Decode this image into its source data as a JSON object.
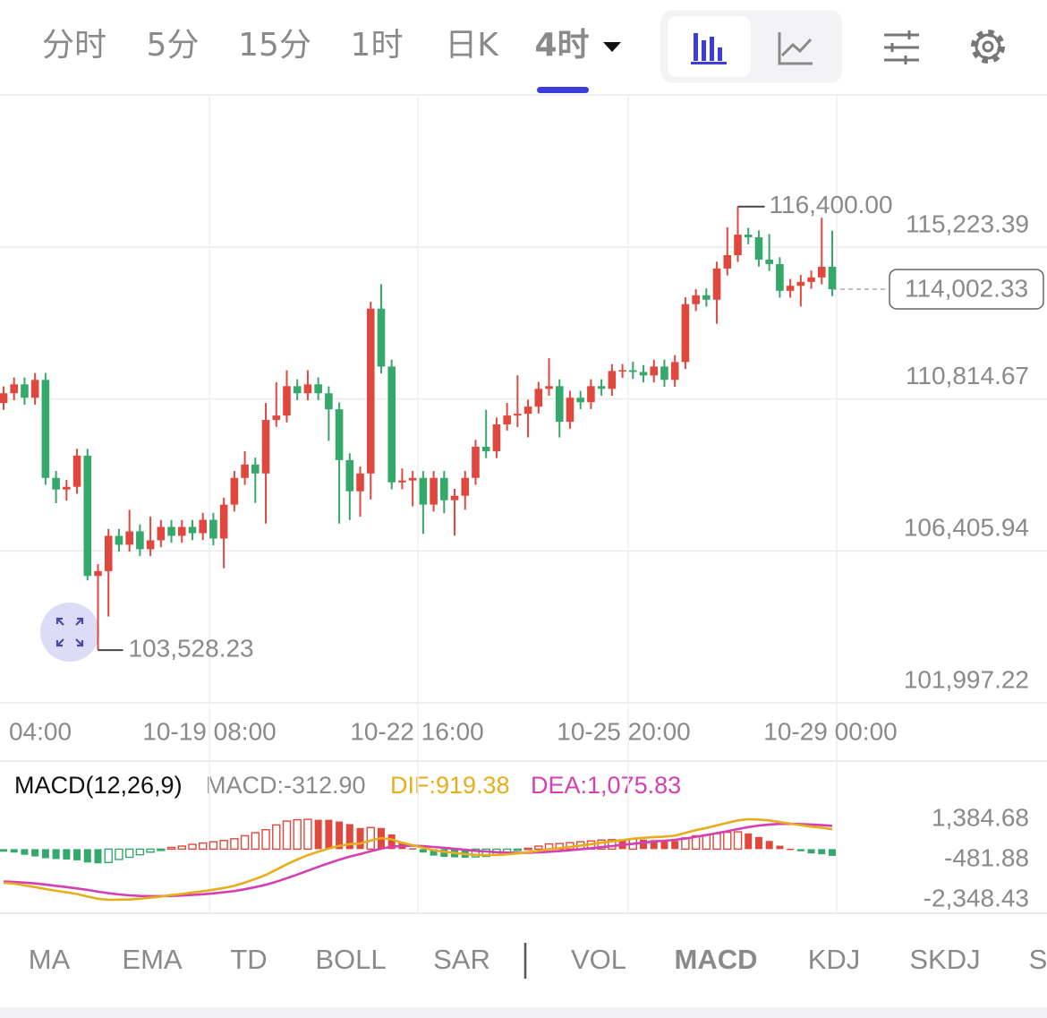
{
  "tabs": [
    "分时",
    "5分",
    "15分",
    "1时",
    "日K",
    "4时"
  ],
  "chart": {
    "type": "candlestick",
    "yticks": [
      {
        "value": 115223.39,
        "label": "115,223.39"
      },
      {
        "value": 110814.67,
        "label": "110,814.67"
      },
      {
        "value": 106405.94,
        "label": "106,405.94"
      },
      {
        "value": 101997.22,
        "label": "101,997.22"
      }
    ],
    "up_color": "#e0483e",
    "down_color": "#35a86b",
    "high_label": {
      "value": 116400,
      "label": "116,400.00"
    },
    "low_label": {
      "value": 103528.23,
      "label": "103,528.23"
    },
    "last_price": {
      "value": 114002.33,
      "label": "114,002.33"
    },
    "time_labels": [
      "04:00",
      "10-19 08:00",
      "10-22 16:00",
      "10-25 20:00",
      "10-29 00:00"
    ],
    "candles": [
      [
        110700,
        111180,
        110500,
        110982
      ],
      [
        110982,
        111440,
        110780,
        111240
      ],
      [
        111240,
        111440,
        110650,
        110852
      ],
      [
        110852,
        111570,
        110650,
        111370
      ],
      [
        111370,
        111570,
        108325,
        108525
      ],
      [
        108525,
        108725,
        107790,
        108189
      ],
      [
        108189,
        108466,
        107866,
        108266
      ],
      [
        108266,
        109371,
        108066,
        109171
      ],
      [
        109171,
        109371,
        105550,
        105680
      ],
      [
        105680,
        106020,
        103528.23,
        105820
      ],
      [
        105820,
        107044,
        104500,
        106844
      ],
      [
        106844,
        107044,
        106385,
        106585
      ],
      [
        106585,
        107600,
        106385,
        106974
      ],
      [
        106974,
        107174,
        106256,
        106456
      ],
      [
        106456,
        107400,
        106256,
        106715
      ],
      [
        106715,
        107303,
        106515,
        107103
      ],
      [
        107103,
        107303,
        106644,
        106844
      ],
      [
        106844,
        107303,
        106644,
        107103
      ],
      [
        107103,
        107303,
        106721,
        106921
      ],
      [
        106921,
        107509,
        106721,
        107309
      ],
      [
        107309,
        107509,
        106566,
        106766
      ],
      [
        106766,
        107950,
        105900,
        107750
      ],
      [
        107750,
        108725,
        107550,
        108525
      ],
      [
        108525,
        109300,
        108325,
        108913
      ],
      [
        108913,
        109113,
        107800,
        108654
      ],
      [
        108654,
        110700,
        107200,
        110206
      ],
      [
        110206,
        111300,
        110006,
        110335
      ],
      [
        110335,
        111650,
        110135,
        111188
      ],
      [
        111188,
        111388,
        110782,
        110982
      ],
      [
        110982,
        111650,
        110782,
        111240
      ],
      [
        111240,
        111440,
        110782,
        110982
      ],
      [
        110982,
        111182,
        109600,
        110516
      ],
      [
        110516,
        110716,
        107200,
        109042
      ],
      [
        109042,
        109242,
        107300,
        108137
      ],
      [
        108137,
        108854,
        107400,
        108654
      ],
      [
        108654,
        113638,
        107900,
        113438
      ],
      [
        113438,
        114150,
        111557,
        111757
      ],
      [
        111757,
        111957,
        108196,
        108396
      ],
      [
        108396,
        108800,
        108196,
        108450
      ],
      [
        108450,
        108725,
        107700,
        108525
      ],
      [
        108525,
        108725,
        106900,
        107750
      ],
      [
        107750,
        108725,
        107550,
        108525
      ],
      [
        108525,
        108725,
        107500,
        107878
      ],
      [
        107878,
        108208,
        106850,
        108008
      ],
      [
        108008,
        108725,
        107600,
        108525
      ],
      [
        108525,
        109630,
        108325,
        109430
      ],
      [
        109430,
        110500,
        109101,
        109301
      ],
      [
        109301,
        110277,
        109101,
        110077
      ],
      [
        110077,
        110700,
        109900,
        110335
      ],
      [
        110335,
        111500,
        110000,
        110387
      ],
      [
        110387,
        110794,
        109700,
        110594
      ],
      [
        110594,
        111311,
        110394,
        111111
      ],
      [
        111111,
        112000,
        110911,
        111188
      ],
      [
        111188,
        111388,
        109700,
        110154
      ],
      [
        110154,
        111052,
        109954,
        110852
      ],
      [
        110852,
        111052,
        110523,
        110723
      ],
      [
        110723,
        111388,
        110523,
        111188
      ],
      [
        111188,
        111388,
        110911,
        111111
      ],
      [
        111111,
        111828,
        110911,
        111628
      ],
      [
        111628,
        111828,
        111428,
        111650
      ],
      [
        111650,
        111900,
        111400,
        111600
      ],
      [
        111600,
        111800,
        111299,
        111499
      ],
      [
        111499,
        111957,
        111299,
        111757
      ],
      [
        111757,
        111957,
        111170,
        111370
      ],
      [
        111370,
        112087,
        111170,
        111887
      ],
      [
        111887,
        113768,
        111687,
        113568
      ],
      [
        113568,
        114000,
        113368,
        113826
      ],
      [
        113826,
        114026,
        113497,
        113697
      ],
      [
        113697,
        114802,
        113000,
        114602
      ],
      [
        114602,
        115800,
        114402,
        114990
      ],
      [
        114990,
        116400,
        114790,
        115585
      ],
      [
        115585,
        115785,
        115307,
        115507
      ],
      [
        115507,
        115707,
        114661,
        114861
      ],
      [
        114861,
        115600,
        114531,
        114731
      ],
      [
        114731,
        114931,
        113755,
        113955
      ],
      [
        113955,
        114300,
        113755,
        114100
      ],
      [
        114100,
        114414,
        113500,
        114214
      ],
      [
        114214,
        114543,
        114014,
        114343
      ],
      [
        114343,
        116076,
        114143,
        114654
      ],
      [
        114654,
        115700,
        113800,
        114002.33
      ]
    ]
  },
  "macd": {
    "title": "MACD(12,26,9)",
    "macd_label": "MACD:-312.90",
    "dif_label": "DIF:919.38",
    "dea_label": "DEA:1,075.83",
    "dif_color": "#e8ad1c",
    "dea_color": "#d63fb4",
    "yticks": [
      {
        "value": 1384.68,
        "label": "1,384.68"
      },
      {
        "value": -481.88,
        "label": "-481.88"
      },
      {
        "value": -2348.43,
        "label": "-2,348.43"
      }
    ],
    "histogram": [
      -120,
      -160,
      -260,
      -340,
      -420,
      -460,
      -480,
      -520,
      -620,
      -660,
      -620,
      -480,
      -380,
      -260,
      -140,
      -40,
      80,
      140,
      220,
      280,
      340,
      400,
      480,
      620,
      760,
      900,
      1120,
      1300,
      1360,
      1380,
      1360,
      1360,
      1280,
      1160,
      980,
      1000,
      980,
      680,
      300,
      40,
      -160,
      -300,
      -360,
      -380,
      -400,
      -360,
      -340,
      -260,
      -160,
      -60,
      40,
      140,
      240,
      260,
      300,
      340,
      380,
      420,
      440,
      440,
      460,
      440,
      420,
      380,
      380,
      520,
      620,
      660,
      720,
      780,
      800,
      729,
      560,
      380,
      160,
      20,
      -100,
      -200,
      -240,
      -312.9
    ],
    "dif": [
      -1560,
      -1600,
      -1680,
      -1760,
      -1850,
      -1930,
      -2000,
      -2080,
      -2200,
      -2300,
      -2348.43,
      -2340,
      -2330,
      -2300,
      -2250,
      -2200,
      -2130,
      -2080,
      -2010,
      -1950,
      -1880,
      -1800,
      -1700,
      -1550,
      -1380,
      -1200,
      -950,
      -700,
      -480,
      -280,
      -120,
      30,
      150,
      230,
      260,
      400,
      510,
      450,
      300,
      180,
      60,
      -50,
      -120,
      -180,
      -230,
      -260,
      -280,
      -270,
      -240,
      -200,
      -150,
      -80,
      0,
      40,
      100,
      160,
      230,
      300,
      360,
      420,
      480,
      520,
      560,
      580,
      620,
      750,
      880,
      980,
      1100,
      1220,
      1330,
      1384.68,
      1370,
      1330,
      1250,
      1180,
      1110,
      1040,
      990,
      919.38
    ],
    "dea": [
      -1500,
      -1520,
      -1550,
      -1590,
      -1640,
      -1700,
      -1760,
      -1820,
      -1890,
      -1970,
      -2040,
      -2100,
      -2140,
      -2170,
      -2180,
      -2180,
      -2170,
      -2150,
      -2120,
      -2090,
      -2050,
      -2000,
      -1940,
      -1860,
      -1760,
      -1650,
      -1510,
      -1350,
      -1180,
      -1000,
      -820,
      -650,
      -490,
      -350,
      -230,
      -100,
      20,
      110,
      150,
      160,
      140,
      100,
      60,
      10,
      -30,
      -80,
      -110,
      -140,
      -160,
      -170,
      -170,
      -150,
      -120,
      -90,
      -50,
      -10,
      40,
      90,
      140,
      200,
      250,
      300,
      350,
      390,
      430,
      490,
      570,
      650,
      740,
      830,
      930,
      1020,
      1090,
      1140,
      1170,
      1170,
      1160,
      1140,
      1110,
      1075.83
    ]
  },
  "indicators": [
    "MA",
    "EMA",
    "TD",
    "BOLL",
    "SAR",
    "VOL",
    "MACD",
    "KDJ",
    "SKDJ",
    "S"
  ]
}
